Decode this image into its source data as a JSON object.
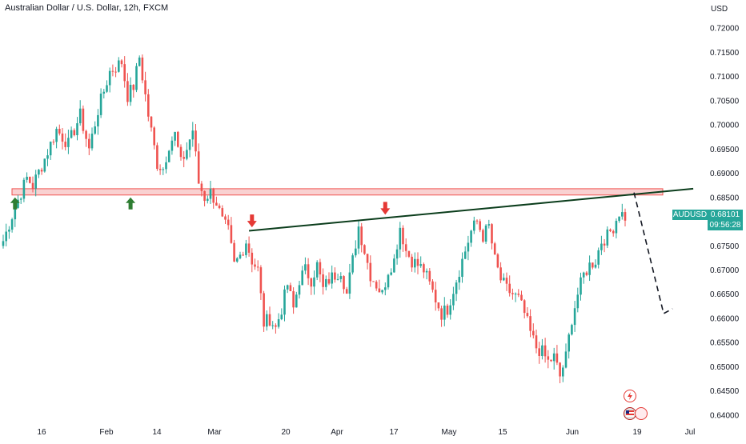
{
  "header": {
    "title": "Australian Dollar / U.S. Dollar, 12h, FXCM"
  },
  "axis": {
    "currency": "USD"
  },
  "price_tags": {
    "symbol": "AUDUSD",
    "price": "0.68101",
    "countdown": "09:56:28"
  },
  "colors": {
    "up": "#26a69a",
    "down": "#ef5350",
    "zone_fill": "#f7c6c6",
    "zone_stroke": "#ef5350",
    "trendline": "#0b3d1c",
    "arrow_up": "#2e7d32",
    "arrow_down": "#e53935"
  },
  "icons": [
    "lightning-icon",
    "flag-icon"
  ],
  "chart_data": {
    "type": "candlestick",
    "title": "Australian Dollar / U.S. Dollar, 12h, FXCM",
    "symbol": "AUDUSD",
    "timeframe": "12h",
    "source": "FXCM",
    "ylabel": "USD",
    "ylim": [
      0.6385,
      0.7225
    ],
    "y_ticks": [
      "0.72000",
      "0.71500",
      "0.71000",
      "0.70500",
      "0.70000",
      "0.69500",
      "0.69000",
      "0.68500",
      "0.68000",
      "0.67500",
      "0.67000",
      "0.66500",
      "0.66000",
      "0.65500",
      "0.65000",
      "0.64500",
      "0.64000"
    ],
    "x_ticks": [
      "16",
      "Feb",
      "14",
      "Mar",
      "20",
      "Apr",
      "17",
      "May",
      "15",
      "Jun",
      "19",
      "Jul"
    ],
    "last_price": 0.68101,
    "close_path": [
      [
        0,
        0.676
      ],
      [
        4,
        0.683
      ],
      [
        8,
        0.689
      ],
      [
        10,
        0.6875
      ],
      [
        14,
        0.693
      ],
      [
        18,
        0.699
      ],
      [
        22,
        0.696
      ],
      [
        26,
        0.702
      ],
      [
        29,
        0.695
      ],
      [
        32,
        0.703
      ],
      [
        36,
        0.711
      ],
      [
        40,
        0.713
      ],
      [
        42,
        0.706
      ],
      [
        44,
        0.708
      ],
      [
        46,
        0.714
      ],
      [
        49,
        0.702
      ],
      [
        52,
        0.692
      ],
      [
        54,
        0.691
      ],
      [
        56,
        0.696
      ],
      [
        58,
        0.698
      ],
      [
        60,
        0.692
      ],
      [
        62,
        0.695
      ],
      [
        64,
        0.699
      ],
      [
        66,
        0.688
      ],
      [
        68,
        0.685
      ],
      [
        70,
        0.686
      ],
      [
        72,
        0.684
      ],
      [
        74,
        0.68
      ],
      [
        76,
        0.678
      ],
      [
        78,
        0.671
      ],
      [
        80,
        0.673
      ],
      [
        82,
        0.676
      ],
      [
        83,
        0.674
      ],
      [
        84,
        0.672
      ],
      [
        86,
        0.67
      ],
      [
        88,
        0.659
      ],
      [
        90,
        0.66
      ],
      [
        92,
        0.658
      ],
      [
        94,
        0.662
      ],
      [
        96,
        0.667
      ],
      [
        98,
        0.662
      ],
      [
        100,
        0.668
      ],
      [
        102,
        0.67
      ],
      [
        104,
        0.668
      ],
      [
        106,
        0.671
      ],
      [
        108,
        0.666
      ],
      [
        110,
        0.668
      ],
      [
        112,
        0.669
      ],
      [
        114,
        0.67
      ],
      [
        116,
        0.665
      ],
      [
        118,
        0.672
      ],
      [
        120,
        0.679
      ],
      [
        122,
        0.674
      ],
      [
        124,
        0.669
      ],
      [
        126,
        0.667
      ],
      [
        128,
        0.665
      ],
      [
        130,
        0.67
      ],
      [
        132,
        0.672
      ],
      [
        134,
        0.679
      ],
      [
        136,
        0.674
      ],
      [
        138,
        0.672
      ],
      [
        140,
        0.671
      ],
      [
        142,
        0.67
      ],
      [
        144,
        0.667
      ],
      [
        146,
        0.664
      ],
      [
        148,
        0.661
      ],
      [
        150,
        0.662
      ],
      [
        152,
        0.666
      ],
      [
        154,
        0.67
      ],
      [
        156,
        0.674
      ],
      [
        158,
        0.678
      ],
      [
        160,
        0.68
      ],
      [
        162,
        0.677
      ],
      [
        164,
        0.679
      ],
      [
        166,
        0.672
      ],
      [
        168,
        0.668
      ],
      [
        170,
        0.666
      ],
      [
        172,
        0.665
      ],
      [
        174,
        0.664
      ],
      [
        176,
        0.661
      ],
      [
        178,
        0.657
      ],
      [
        180,
        0.654
      ],
      [
        182,
        0.653
      ],
      [
        184,
        0.651
      ],
      [
        186,
        0.652
      ],
      [
        188,
        0.648
      ],
      [
        190,
        0.652
      ],
      [
        192,
        0.66
      ],
      [
        194,
        0.665
      ],
      [
        196,
        0.669
      ],
      [
        198,
        0.671
      ],
      [
        200,
        0.672
      ],
      [
        202,
        0.676
      ],
      [
        204,
        0.677
      ],
      [
        206,
        0.679
      ],
      [
        208,
        0.682
      ],
      [
        210,
        0.681
      ]
    ],
    "annotations": {
      "resistance_zone": [
        0.6855,
        0.6868
      ],
      "trendline": {
        "start_bar": 83,
        "start_price": 0.6781,
        "end_bar": 233,
        "end_price": 0.6868
      },
      "projection": {
        "points": [
          [
            213,
            0.686
          ],
          [
            223,
            0.661
          ],
          [
            226,
            0.662
          ]
        ],
        "style": "dashed"
      },
      "up_arrows_at_bars": [
        4,
        43
      ],
      "down_arrows_at_bars": [
        84,
        129
      ]
    }
  }
}
